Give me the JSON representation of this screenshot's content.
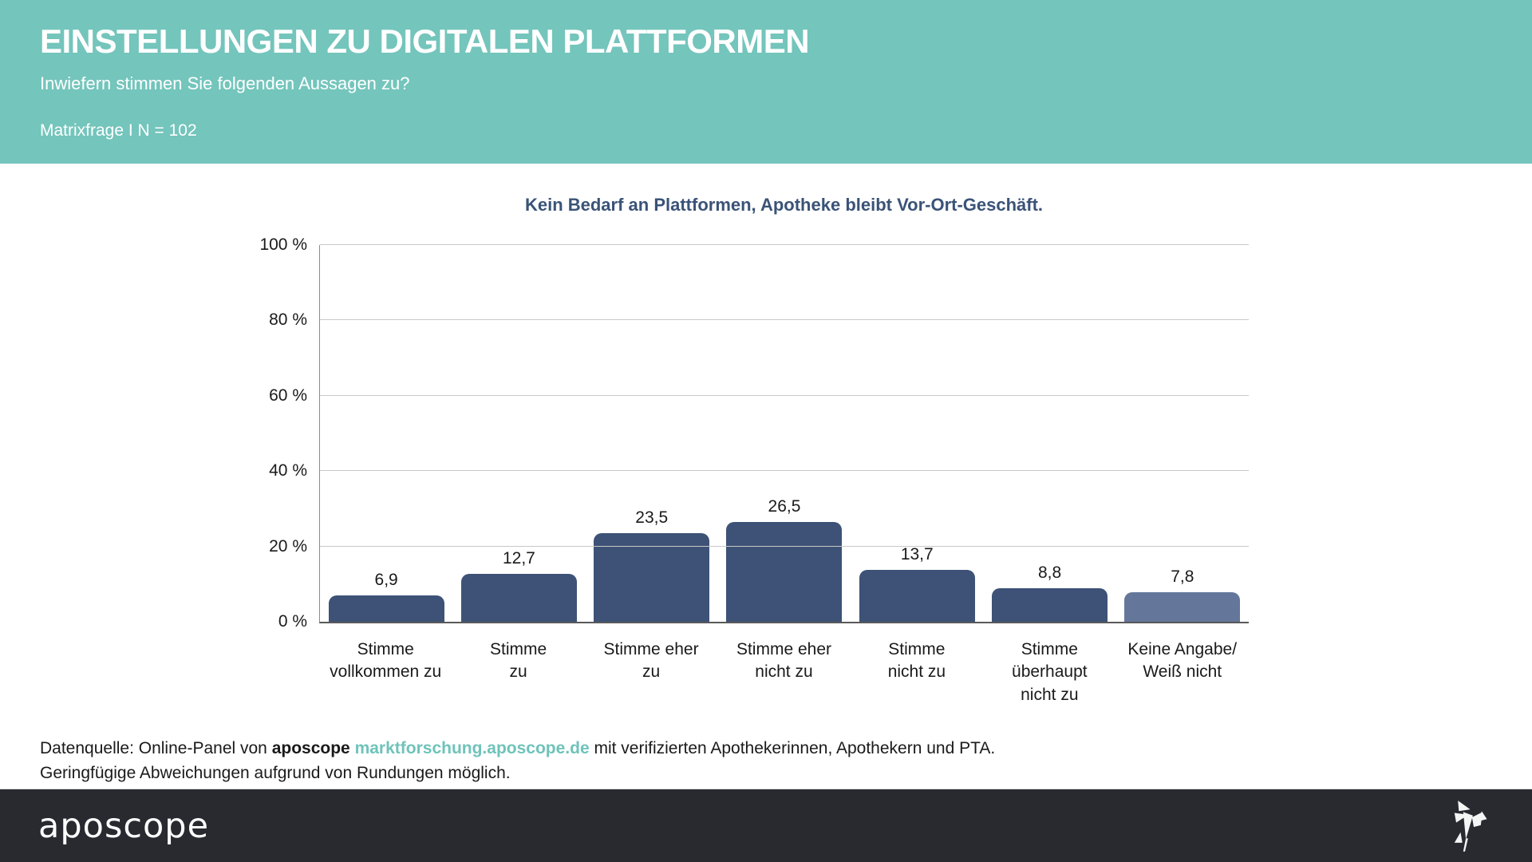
{
  "header": {
    "title": "EINSTELLUNGEN ZU DIGITALEN PLATTFORMEN",
    "subtitle": "Inwiefern stimmen Sie folgenden Aussagen zu?",
    "meta": "Matrixfrage I N = 102"
  },
  "chart_data": {
    "type": "bar",
    "title": "Kein Bedarf an Plattformen, Apotheke bleibt Vor-Ort-Geschäft.",
    "categories": [
      "Stimme\nvollkommen zu",
      "Stimme\nzu",
      "Stimme eher\nzu",
      "Stimme eher\nnicht zu",
      "Stimme\nnicht zu",
      "Stimme\nüberhaupt\nnicht zu",
      "Keine Angabe/\nWeiß nicht"
    ],
    "values": [
      6.9,
      12.7,
      23.5,
      26.5,
      13.7,
      8.8,
      7.8
    ],
    "value_labels": [
      "6,9",
      "12,7",
      "23,5",
      "26,5",
      "13,7",
      "8,8",
      "7,8"
    ],
    "bar_colors": [
      "#3d5276",
      "#3d5276",
      "#3d5276",
      "#3d5276",
      "#3d5276",
      "#3d5276",
      "#64779b"
    ],
    "y_ticks": [
      "0 %",
      "20 %",
      "40 %",
      "60 %",
      "80 %",
      "100 %"
    ],
    "ylim": [
      0,
      100
    ],
    "unit": "%",
    "grid": "horizontal",
    "legend": "none"
  },
  "footnote": {
    "prefix": "Datenquelle: Online-Panel von ",
    "brand": "aposcope",
    "space": " ",
    "link": "marktforschung.aposcope.de",
    "suffix": " mit verifizierten Apothekerinnen, Apothekern und PTA.",
    "line2": "Geringfügige Abweichungen aufgrund von Rundungen möglich."
  },
  "footer": {
    "logo_text": "aposcope",
    "logo_icon": "origami-bird-icon"
  },
  "colors": {
    "header_bg": "#74c5bc",
    "chart_title": "#3a5377",
    "bar_default": "#3d5276",
    "bar_no_answer": "#64779b",
    "link": "#6fc3ba",
    "footer_bg": "#282a30",
    "gridline": "#c9c9c9"
  }
}
